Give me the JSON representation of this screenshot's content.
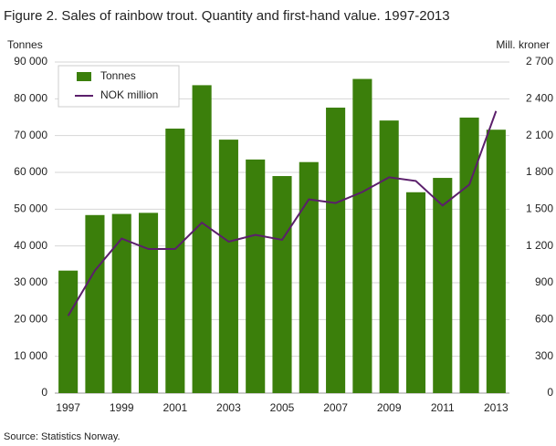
{
  "chart_data": {
    "type": "bar_line",
    "title": "Figure 2. Sales of rainbow trout. Quantity and first-hand value. 1997-2013",
    "y_label": "Tonnes",
    "y2_label": "Mill. kroner",
    "source": "Source: Statistics Norway.",
    "categories": [
      "1997",
      null,
      "1999",
      null,
      "2001",
      null,
      "2003",
      null,
      "2005",
      null,
      "2007",
      null,
      "2009",
      null,
      "2011",
      null,
      "2013"
    ],
    "series": [
      {
        "name": "Tonnes",
        "type": "bar",
        "color": "#3b7f0b",
        "values": [
          33300,
          48400,
          48700,
          49000,
          71900,
          83700,
          68900,
          63500,
          59000,
          62800,
          77600,
          85400,
          74100,
          54600,
          58500,
          74900,
          71600
        ]
      },
      {
        "name": "NOK million",
        "type": "line",
        "axis": "y2",
        "color": "#5b1f6b",
        "values": [
          630,
          1000,
          1260,
          1175,
          1175,
          1390,
          1235,
          1290,
          1250,
          1580,
          1550,
          1640,
          1760,
          1730,
          1530,
          1700,
          2300
        ]
      }
    ],
    "ylim": [
      0,
      90000
    ],
    "yticks": [
      0,
      {
        "value": 10000,
        "label": "10 000"
      },
      {
        "value": 20000,
        "label": "20 000"
      },
      {
        "value": 30000,
        "label": "30 000"
      },
      {
        "value": 40000,
        "label": "40 000"
      },
      {
        "value": 50000,
        "label": "50 000"
      },
      {
        "value": 60000,
        "label": "60 000"
      },
      {
        "value": 70000,
        "label": "70 000"
      },
      {
        "value": 80000,
        "label": "80 000"
      },
      {
        "value": 90000,
        "label": "90 000"
      }
    ],
    "y2lim": [
      0,
      2700
    ],
    "y2ticks": [
      0,
      300,
      600,
      900,
      {
        "value": 1200,
        "label": "1 200"
      },
      {
        "value": 1500,
        "label": "1 500"
      },
      {
        "value": 1800,
        "label": "1 800"
      },
      {
        "value": 2100,
        "label": "2 100"
      },
      {
        "value": 2400,
        "label": "2 400"
      },
      {
        "value": 2700,
        "label": "2 700"
      }
    ],
    "grid": true,
    "legend": "upper left"
  }
}
